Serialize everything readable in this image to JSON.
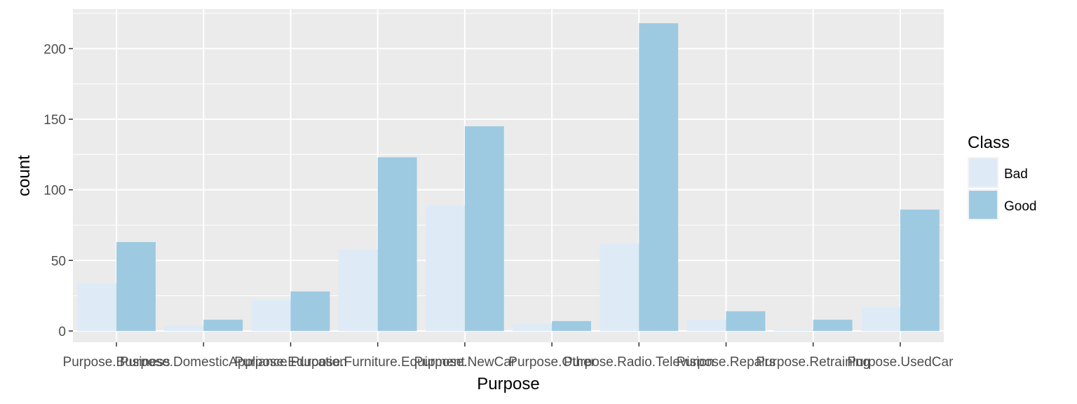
{
  "chart_data": {
    "type": "bar",
    "xlabel": "Purpose",
    "ylabel": "count",
    "categories": [
      "Purpose.Business",
      "Purpose.DomesticAppliance",
      "Purpose.Education",
      "Purpose.Furniture.Equipment",
      "Purpose.NewCar",
      "Purpose.Other",
      "Purpose.Radio.Television",
      "Purpose.Repairs",
      "Purpose.Retraining",
      "Purpose.UsedCar"
    ],
    "series": [
      {
        "name": "Bad",
        "color": "#deebf7",
        "values": [
          34,
          4,
          22,
          58,
          89,
          5,
          62,
          8,
          1,
          17
        ]
      },
      {
        "name": "Good",
        "color": "#9ecae1",
        "values": [
          63,
          8,
          28,
          123,
          145,
          7,
          218,
          14,
          8,
          86
        ]
      }
    ],
    "ylim": [
      -8,
      228
    ],
    "yticks": [
      0,
      50,
      100,
      150,
      200
    ],
    "grid": true,
    "panel_background": "#ebebeb",
    "legend": {
      "title": "Class",
      "position": "right",
      "labels": [
        "Bad",
        "Good"
      ]
    }
  }
}
